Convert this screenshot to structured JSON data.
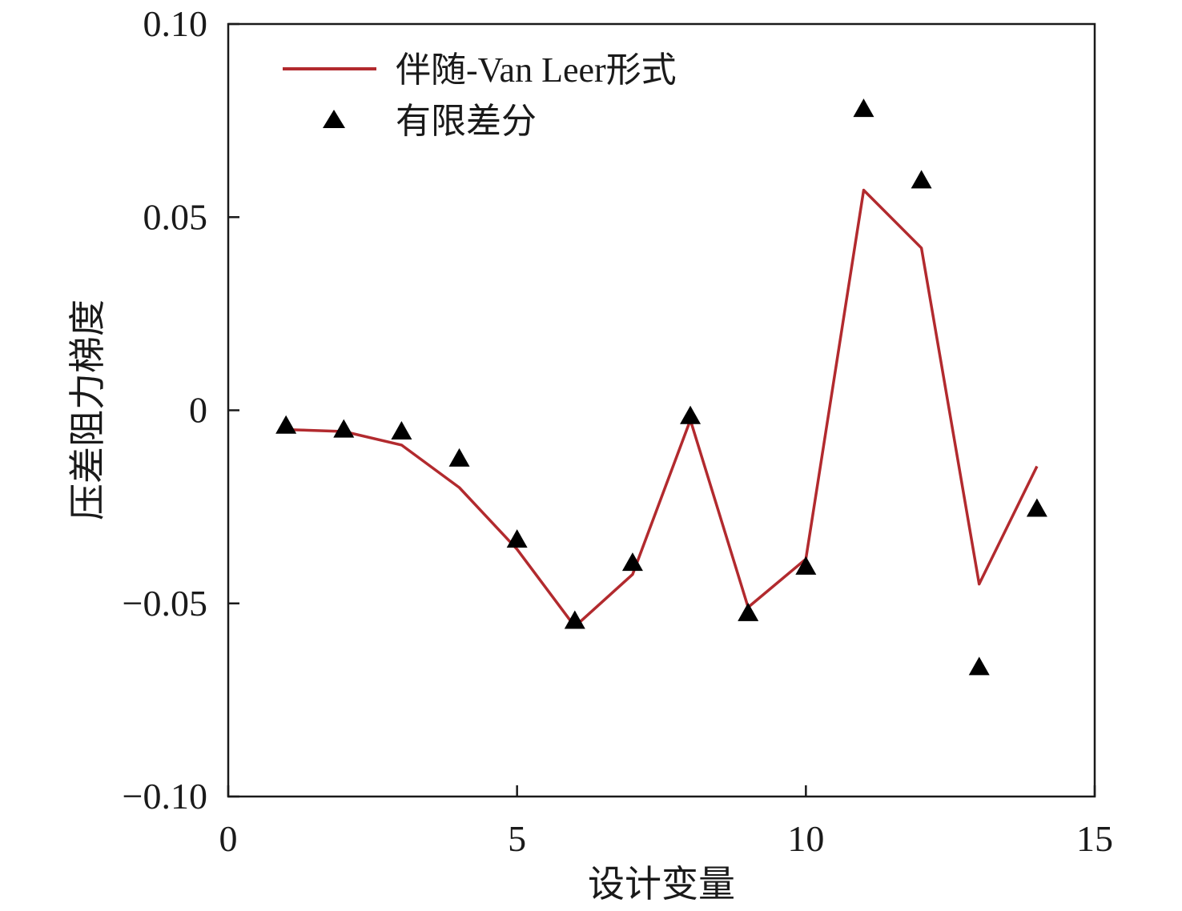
{
  "chart_data": {
    "type": "line",
    "title": "",
    "xlabel": "设计变量",
    "ylabel": "压差阻力梯度",
    "xlim": [
      0,
      15
    ],
    "ylim": [
      -0.1,
      0.1
    ],
    "xticks": [
      0,
      5,
      10,
      15
    ],
    "xtick_labels": [
      "0",
      "5",
      "10",
      "15"
    ],
    "yticks": [
      0.1,
      0.05,
      0,
      -0.05,
      -0.1
    ],
    "ytick_labels": [
      "0.10",
      "0.05",
      "0",
      "−0.05",
      "−0.10"
    ],
    "grid": false,
    "legend_position": "top-left",
    "series": [
      {
        "name": "伴随-Van Leer形式",
        "kind": "line",
        "color": "#b22a2e",
        "x": [
          1,
          2,
          3,
          4,
          5,
          6,
          7,
          8,
          9,
          10,
          11,
          12,
          13,
          14
        ],
        "y": [
          -0.005,
          -0.0055,
          -0.009,
          -0.02,
          -0.036,
          -0.056,
          -0.0425,
          -0.0025,
          -0.051,
          -0.0385,
          0.057,
          0.042,
          -0.045,
          -0.0145
        ]
      },
      {
        "name": "有限差分",
        "kind": "scatter",
        "color": "#000000",
        "marker": "triangle",
        "x": [
          1,
          2,
          3,
          4,
          5,
          6,
          7,
          8,
          9,
          10,
          11,
          12,
          13,
          14
        ],
        "y": [
          -0.004,
          -0.005,
          -0.0055,
          -0.0125,
          -0.0335,
          -0.0545,
          -0.0395,
          -0.0015,
          -0.0525,
          -0.0405,
          0.078,
          0.0595,
          -0.0665,
          -0.0255
        ]
      }
    ]
  }
}
